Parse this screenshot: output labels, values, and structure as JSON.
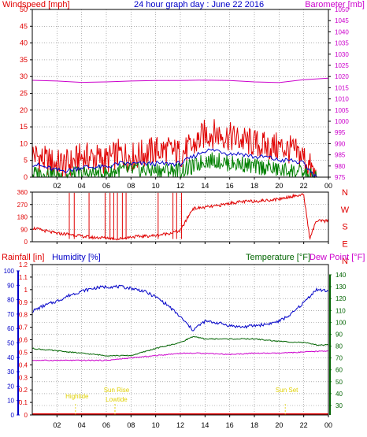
{
  "header": {
    "left_label": "Windspeed [mph]",
    "title": "24 hour graph day : June 22 2016",
    "right_label": "Barometer [mb]"
  },
  "colors": {
    "wind": "#e00000",
    "gust": "#e00000",
    "avg": "#0000c8",
    "low": "#008000",
    "baro": "#cc00cc",
    "humidity": "#0000c8",
    "temp": "#006400",
    "dew": "#cc00cc",
    "rain": "#e00000",
    "events": "#e0d000",
    "grid": "#808080"
  },
  "chart_data": [
    {
      "type": "line",
      "name": "wind-baro",
      "xlabel": "",
      "ylabel": "Windspeed [mph]",
      "y2label": "Barometer [mb]",
      "x_ticks": [
        "02",
        "04",
        "06",
        "08",
        "10",
        "12",
        "14",
        "16",
        "18",
        "20",
        "22",
        "00"
      ],
      "y_ticks": [
        0,
        5,
        10,
        15,
        20,
        25,
        30,
        35,
        40,
        45,
        50
      ],
      "y2_ticks": [
        975,
        980,
        985,
        990,
        995,
        1000,
        1005,
        1010,
        1015,
        1020,
        1025,
        1030,
        1035,
        1040,
        1045,
        1050
      ],
      "ylim": [
        0,
        50
      ],
      "y2lim": [
        975,
        1050
      ],
      "xlim": [
        0,
        24
      ],
      "series": [
        {
          "key": "gust",
          "x": [
            0,
            1,
            2,
            3,
            4,
            5,
            6,
            7,
            8,
            9,
            10,
            11,
            12,
            13,
            14,
            15,
            16,
            17,
            18,
            19,
            20,
            21,
            22,
            23,
            24
          ],
          "values": [
            7,
            5,
            4,
            4,
            6,
            6,
            5,
            7,
            6,
            7,
            8,
            8,
            7,
            9,
            13,
            13,
            12,
            11,
            10,
            9,
            9,
            8,
            6,
            0,
            0
          ]
        },
        {
          "key": "avg",
          "x": [
            0,
            1,
            2,
            3,
            4,
            5,
            6,
            7,
            8,
            9,
            10,
            11,
            12,
            13,
            14,
            15,
            16,
            17,
            18,
            19,
            20,
            21,
            22,
            23,
            24
          ],
          "values": [
            4,
            3,
            2,
            2,
            3,
            3,
            3,
            4,
            4,
            4,
            4,
            4,
            4,
            6,
            8,
            8,
            7,
            7,
            6,
            6,
            5,
            5,
            4,
            0,
            0
          ]
        },
        {
          "key": "low",
          "x": [
            0,
            1,
            2,
            3,
            4,
            5,
            6,
            7,
            8,
            9,
            10,
            11,
            12,
            13,
            14,
            15,
            16,
            17,
            18,
            19,
            20,
            21,
            22,
            23,
            24
          ],
          "values": [
            1,
            1,
            0.5,
            0.5,
            1,
            1,
            1,
            2,
            2,
            2,
            2,
            2,
            2,
            3,
            5,
            5,
            4,
            4,
            3,
            3,
            2,
            2,
            1,
            0,
            0
          ]
        },
        {
          "key": "baro",
          "x": [
            0,
            2,
            4,
            6,
            8,
            10,
            12,
            14,
            16,
            18,
            20,
            22,
            24
          ],
          "values": [
            1018.3,
            1018.0,
            1017.4,
            1017.6,
            1018.0,
            1018.2,
            1018.2,
            1018.4,
            1018.2,
            1017.6,
            1017.3,
            1018.6,
            1019.3
          ]
        }
      ]
    },
    {
      "type": "line",
      "name": "wind-direction",
      "xlabel": "",
      "ylabel": "",
      "y_ticks": [
        0,
        90,
        180,
        270,
        360
      ],
      "y2_labels": [
        "N",
        "W",
        "S",
        "E",
        "N"
      ],
      "ylim": [
        0,
        360
      ],
      "xlim": [
        0,
        24
      ],
      "series": [
        {
          "key": "dir",
          "x": [
            0,
            1,
            2,
            3,
            4,
            5,
            6,
            7,
            8,
            9,
            10,
            11,
            12,
            13,
            14,
            15,
            16,
            17,
            18,
            19,
            20,
            21,
            22,
            22.5,
            23,
            24
          ],
          "values": [
            100,
            80,
            60,
            55,
            40,
            30,
            30,
            20,
            35,
            40,
            45,
            60,
            80,
            240,
            250,
            260,
            280,
            290,
            295,
            300,
            310,
            330,
            340,
            20,
            150,
            150
          ]
        }
      ]
    },
    {
      "type": "line",
      "name": "rain-hum-temp",
      "xlabel": "",
      "ylabel": "Rainfall [in]",
      "labels": {
        "humidity": "Humidity [%]",
        "temp": "Temperature [°F]",
        "dew": "Dew Point [°F]"
      },
      "rain_ticks": [
        0,
        0.1,
        0.2,
        0.3,
        0.4,
        0.5,
        0.6,
        0.7,
        0.8,
        0.9,
        1,
        1.1,
        1.2
      ],
      "hum_ticks": [
        0,
        10,
        20,
        30,
        40,
        50,
        60,
        70,
        80,
        90,
        100
      ],
      "temp_ticks": [
        30,
        40,
        50,
        60,
        70,
        80,
        90,
        100,
        110,
        120,
        130,
        140
      ],
      "rain_lim": [
        0,
        1.2
      ],
      "hum_lim": [
        0,
        100
      ],
      "temp_lim": [
        30,
        140
      ],
      "xlim": [
        0,
        24
      ],
      "series": [
        {
          "key": "humidity",
          "x": [
            0,
            1,
            2,
            3,
            4,
            5,
            6,
            7,
            8,
            9,
            10,
            11,
            12,
            13,
            14,
            15,
            16,
            17,
            18,
            19,
            20,
            21,
            22,
            23,
            24
          ],
          "values": [
            72,
            76,
            79,
            83,
            86,
            88,
            89,
            89,
            88,
            86,
            82,
            76,
            68,
            59,
            65,
            64,
            62,
            61,
            62,
            63,
            65,
            70,
            78,
            87,
            86
          ]
        },
        {
          "key": "temp",
          "x": [
            0,
            2,
            4,
            6,
            8,
            10,
            12,
            13,
            14,
            16,
            18,
            20,
            22,
            23,
            24
          ],
          "values": [
            78,
            76,
            74,
            72,
            72,
            78,
            83,
            88,
            86,
            86,
            86,
            84,
            83,
            81,
            81
          ]
        },
        {
          "key": "dew",
          "x": [
            0,
            2,
            4,
            6,
            8,
            10,
            12,
            14,
            16,
            18,
            20,
            22,
            24
          ],
          "values": [
            68,
            68,
            68,
            68,
            70,
            72,
            74,
            74,
            73,
            74,
            74,
            75,
            76
          ]
        },
        {
          "key": "rain",
          "x": [
            0,
            24
          ],
          "values": [
            0,
            0
          ]
        }
      ],
      "events": [
        {
          "label": "Hightide",
          "x": 3.5
        },
        {
          "label": "Sun Rise",
          "x": 6.7
        },
        {
          "label": "Lowtide",
          "x": 6.7
        },
        {
          "label": "Sun Set",
          "x": 20.5
        }
      ]
    }
  ]
}
